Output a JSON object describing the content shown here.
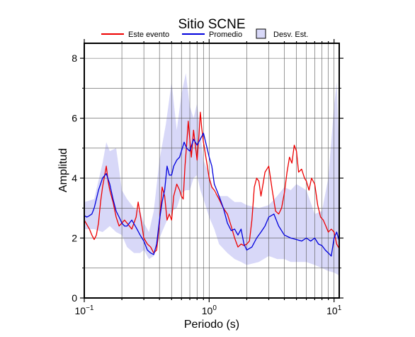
{
  "chart_data": {
    "type": "line",
    "title": "Sitio SCNE",
    "xlabel": "Periodo (s)",
    "ylabel": "Amplitud",
    "xscale": "log",
    "xlim": [
      0.1,
      11
    ],
    "ylim": [
      0,
      8.5
    ],
    "grid": true,
    "legend_placement": "top",
    "x_ticks": [
      {
        "value": 0.1,
        "base": "10",
        "exp": "−1"
      },
      {
        "value": 1,
        "base": "10",
        "exp": "0"
      },
      {
        "value": 10,
        "base": "10",
        "exp": "1"
      }
    ],
    "y_ticks": [
      0,
      2,
      4,
      6,
      8
    ],
    "legend": [
      {
        "label": "Este evento",
        "kind": "line",
        "color": "#ee0000"
      },
      {
        "label": "Promedio",
        "kind": "line",
        "color": "#0000dd"
      },
      {
        "label": "Desv. Est.",
        "kind": "patch",
        "color": "#d8d8f8"
      }
    ],
    "band": {
      "name": "Desv. Est.",
      "color": "#d8d8f8",
      "x": [
        0.1,
        0.12,
        0.14,
        0.15,
        0.16,
        0.18,
        0.2,
        0.22,
        0.25,
        0.28,
        0.3,
        0.33,
        0.36,
        0.4,
        0.45,
        0.5,
        0.55,
        0.6,
        0.65,
        0.7,
        0.75,
        0.8,
        0.85,
        0.9,
        1.0,
        1.1,
        1.2,
        1.4,
        1.6,
        1.8,
        2.0,
        2.5,
        3.0,
        3.5,
        4.0,
        4.5,
        5.0,
        6.0,
        7.0,
        8.0,
        9.0,
        10.0,
        10.5,
        11.0
      ],
      "upper": [
        3.2,
        3.3,
        4.5,
        5.2,
        4.9,
        5.0,
        3.6,
        3.3,
        3.0,
        2.9,
        2.5,
        2.2,
        2.9,
        4.6,
        5.8,
        7.2,
        5.6,
        6.8,
        7.5,
        6.4,
        6.0,
        6.5,
        5.5,
        4.6,
        4.1,
        3.5,
        3.4,
        3.4,
        3.2,
        3.2,
        3.1,
        3.0,
        3.1,
        3.4,
        3.7,
        3.6,
        3.8,
        3.6,
        2.8,
        2.9,
        4.0,
        6.4,
        7.2,
        4.8
      ],
      "lower": [
        2.3,
        2.3,
        2.2,
        2.3,
        2.4,
        2.2,
        2.1,
        1.7,
        1.5,
        1.5,
        1.6,
        1.3,
        1.4,
        2.0,
        2.5,
        2.9,
        3.0,
        3.5,
        3.6,
        3.6,
        4.0,
        4.1,
        3.6,
        3.3,
        2.7,
        2.3,
        1.8,
        1.5,
        1.3,
        1.2,
        1.1,
        1.2,
        1.4,
        1.3,
        1.3,
        1.2,
        1.2,
        1.2,
        1.1,
        1.0,
        0.9,
        0.85,
        0.8,
        0.75
      ]
    },
    "series": [
      {
        "name": "Este evento",
        "color": "#ee0000",
        "x": [
          0.1,
          0.11,
          0.115,
          0.12,
          0.125,
          0.13,
          0.135,
          0.14,
          0.15,
          0.155,
          0.16,
          0.17,
          0.18,
          0.19,
          0.2,
          0.21,
          0.22,
          0.24,
          0.26,
          0.27,
          0.28,
          0.3,
          0.32,
          0.34,
          0.36,
          0.38,
          0.4,
          0.42,
          0.44,
          0.46,
          0.48,
          0.5,
          0.52,
          0.55,
          0.58,
          0.6,
          0.62,
          0.64,
          0.66,
          0.68,
          0.7,
          0.72,
          0.75,
          0.78,
          0.8,
          0.83,
          0.85,
          0.87,
          0.9,
          0.95,
          1.0,
          1.05,
          1.1,
          1.2,
          1.3,
          1.4,
          1.5,
          1.6,
          1.7,
          1.8,
          1.9,
          2.0,
          2.1,
          2.2,
          2.3,
          2.4,
          2.5,
          2.6,
          2.7,
          2.8,
          2.9,
          3.0,
          3.2,
          3.4,
          3.6,
          3.8,
          4.0,
          4.2,
          4.4,
          4.6,
          4.8,
          5.0,
          5.2,
          5.5,
          5.8,
          6.0,
          6.3,
          6.6,
          7.0,
          7.4,
          7.8,
          8.2,
          8.6,
          9.0,
          9.5,
          10.0,
          10.5,
          11.0
        ],
        "values": [
          2.6,
          2.3,
          2.1,
          1.95,
          2.1,
          2.5,
          3.2,
          3.7,
          4.4,
          3.9,
          3.6,
          3.2,
          2.7,
          2.4,
          2.5,
          2.6,
          2.5,
          2.3,
          2.7,
          3.2,
          2.8,
          2.0,
          1.8,
          1.7,
          1.5,
          1.6,
          2.5,
          3.7,
          3.4,
          2.6,
          2.8,
          2.6,
          3.4,
          3.8,
          3.6,
          3.4,
          3.3,
          4.4,
          5.1,
          5.9,
          5.3,
          4.7,
          5.6,
          5.0,
          4.6,
          5.5,
          6.2,
          5.7,
          5.2,
          4.6,
          4.0,
          3.7,
          3.6,
          3.3,
          3.0,
          2.8,
          2.4,
          2.0,
          1.7,
          1.8,
          1.75,
          1.8,
          1.9,
          2.6,
          3.7,
          4.0,
          3.9,
          3.4,
          3.8,
          4.2,
          4.3,
          4.4,
          3.6,
          2.9,
          2.8,
          3.0,
          3.5,
          4.2,
          4.7,
          4.5,
          5.1,
          4.9,
          4.2,
          4.3,
          4.0,
          3.9,
          3.6,
          4.0,
          3.8,
          3.1,
          2.7,
          2.6,
          2.4,
          2.2,
          2.3,
          2.2,
          1.8,
          1.65
        ]
      },
      {
        "name": "Promedio",
        "color": "#0000dd",
        "x": [
          0.1,
          0.105,
          0.11,
          0.115,
          0.12,
          0.125,
          0.13,
          0.14,
          0.15,
          0.16,
          0.17,
          0.18,
          0.19,
          0.2,
          0.21,
          0.22,
          0.24,
          0.26,
          0.28,
          0.3,
          0.32,
          0.34,
          0.36,
          0.38,
          0.4,
          0.42,
          0.44,
          0.46,
          0.48,
          0.5,
          0.52,
          0.55,
          0.58,
          0.6,
          0.63,
          0.66,
          0.7,
          0.75,
          0.8,
          0.85,
          0.9,
          0.95,
          1.0,
          1.05,
          1.1,
          1.2,
          1.3,
          1.4,
          1.5,
          1.6,
          1.7,
          1.8,
          1.9,
          2.0,
          2.2,
          2.4,
          2.6,
          2.8,
          3.0,
          3.3,
          3.6,
          4.0,
          4.5,
          5.0,
          5.5,
          6.0,
          6.5,
          7.0,
          7.5,
          8.0,
          8.5,
          9.0,
          9.5,
          10.0,
          10.5,
          11.0
        ],
        "values": [
          2.75,
          2.7,
          2.75,
          2.8,
          3.0,
          3.3,
          3.6,
          4.0,
          4.15,
          3.8,
          3.3,
          2.9,
          2.7,
          2.5,
          2.4,
          2.4,
          2.6,
          2.35,
          2.1,
          1.9,
          1.6,
          1.5,
          1.45,
          1.8,
          2.6,
          3.2,
          3.6,
          4.4,
          4.1,
          4.1,
          4.4,
          4.6,
          4.7,
          4.9,
          5.2,
          5.0,
          4.9,
          5.3,
          5.1,
          5.3,
          5.5,
          5.1,
          4.7,
          4.4,
          3.8,
          3.4,
          3.0,
          2.5,
          2.25,
          2.3,
          2.1,
          2.3,
          1.8,
          1.6,
          1.7,
          2.0,
          2.2,
          2.4,
          2.7,
          2.8,
          2.4,
          2.1,
          2.0,
          1.95,
          1.9,
          2.0,
          1.9,
          2.0,
          1.8,
          1.75,
          1.6,
          1.5,
          1.4,
          2.0,
          2.2,
          1.9
        ]
      }
    ]
  }
}
